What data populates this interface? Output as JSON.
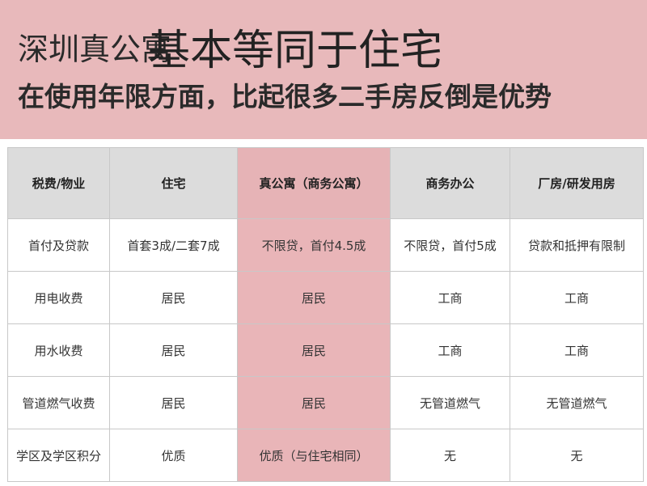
{
  "banner": {
    "title_prefix": "深圳真公寓",
    "title_main": "基本等同于住宅",
    "subtitle": "在使用年限方面，比起很多二手房反倒是优势",
    "background_color": "#e8b9bb"
  },
  "table": {
    "headers": [
      "税费/物业",
      "住宅",
      "真公寓（商务公寓）",
      "商务办公",
      "厂房/研发用房"
    ],
    "highlight_color": "#e9b5b8",
    "rows": [
      [
        "首付及贷款",
        "首套3成/二套7成",
        "不限贷，首付4.5成",
        "不限贷，首付5成",
        "贷款和抵押有限制"
      ],
      [
        "用电收费",
        "居民",
        "居民",
        "工商",
        "工商"
      ],
      [
        "用水收费",
        "居民",
        "居民",
        "工商",
        "工商"
      ],
      [
        "管道燃气收费",
        "居民",
        "居民",
        "无管道燃气",
        "无管道燃气"
      ],
      [
        "学区及学区积分",
        "优质",
        "优质（与住宅相同）",
        "无",
        "无"
      ]
    ]
  }
}
